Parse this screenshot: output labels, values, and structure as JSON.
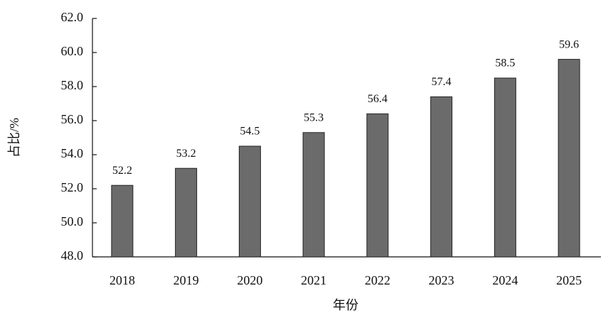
{
  "chart_data": {
    "type": "bar",
    "x_label": "年份",
    "y_label": "占比/%",
    "categories": [
      "2018",
      "2019",
      "2020",
      "2021",
      "2022",
      "2023",
      "2024",
      "2025"
    ],
    "values": [
      52.2,
      53.2,
      54.5,
      55.3,
      56.4,
      57.4,
      58.5,
      59.6
    ],
    "color": "#6b6b6b",
    "ylim": [
      48,
      62
    ],
    "yticks": [
      {
        "value": 48,
        "label": "48.0"
      },
      {
        "value": 50,
        "label": "50.0"
      },
      {
        "value": 52,
        "label": "52.0"
      },
      {
        "value": 54,
        "label": "54.0"
      },
      {
        "value": 56,
        "label": "56.0"
      },
      {
        "value": 58,
        "label": "58.0"
      },
      {
        "value": 60,
        "label": "60.0"
      },
      {
        "value": 62,
        "label": "62.0"
      }
    ],
    "grid": false
  }
}
